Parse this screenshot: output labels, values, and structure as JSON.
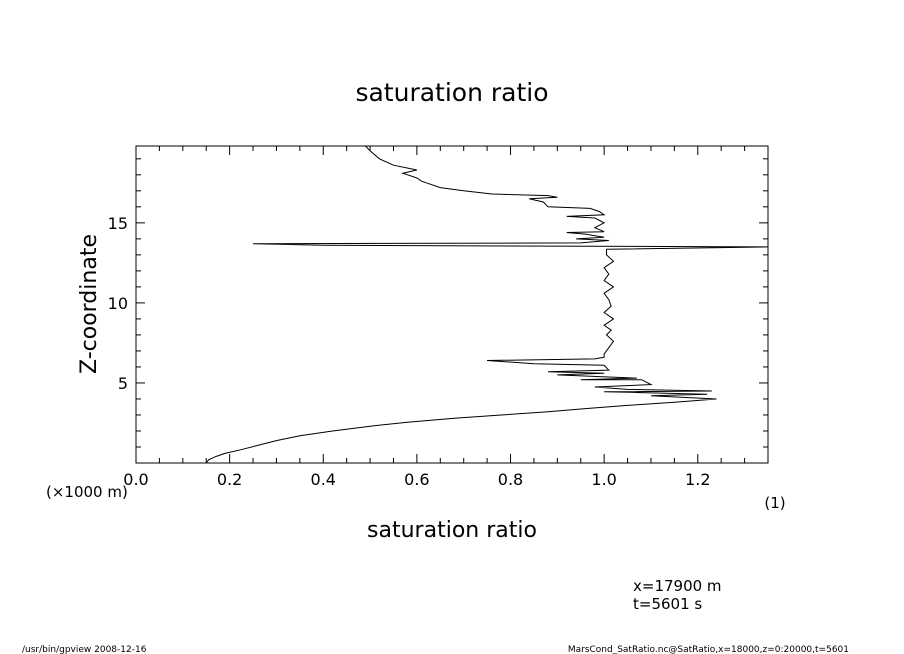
{
  "chart_data": {
    "type": "line",
    "title": "saturation ratio",
    "xlabel": "saturation ratio",
    "xunit": "(1)",
    "ylabel": "Z-coordinate",
    "yunit": "(×1000 m)",
    "xlim": [
      0.0,
      1.35
    ],
    "ylim": [
      0,
      19.8
    ],
    "xticks": [
      0.0,
      0.2,
      0.4,
      0.6,
      0.8,
      1.0,
      1.2
    ],
    "xtick_labels": [
      "0.0",
      "0.2",
      "0.4",
      "0.6",
      "0.8",
      "1.0",
      "1.2"
    ],
    "yticks": [
      5,
      10,
      15
    ],
    "ytick_labels": [
      "5",
      "10",
      "15"
    ],
    "grid": false,
    "series": [
      {
        "name": "",
        "points": [
          [
            0.15,
            0.0
          ],
          [
            0.155,
            0.2
          ],
          [
            0.17,
            0.4
          ],
          [
            0.19,
            0.6
          ],
          [
            0.22,
            0.8
          ],
          [
            0.26,
            1.1
          ],
          [
            0.3,
            1.4
          ],
          [
            0.35,
            1.7
          ],
          [
            0.42,
            2.0
          ],
          [
            0.5,
            2.3
          ],
          [
            0.58,
            2.55
          ],
          [
            0.68,
            2.8
          ],
          [
            0.78,
            3.0
          ],
          [
            0.88,
            3.2
          ],
          [
            0.96,
            3.4
          ],
          [
            1.05,
            3.6
          ],
          [
            1.15,
            3.8
          ],
          [
            1.24,
            4.0
          ],
          [
            1.1,
            4.2
          ],
          [
            1.22,
            4.3
          ],
          [
            1.0,
            4.45
          ],
          [
            1.23,
            4.5
          ],
          [
            1.05,
            4.6
          ],
          [
            0.98,
            4.75
          ],
          [
            1.1,
            4.9
          ],
          [
            1.08,
            5.2
          ],
          [
            0.95,
            5.2
          ],
          [
            1.07,
            5.3
          ],
          [
            0.9,
            5.5
          ],
          [
            1.0,
            5.6
          ],
          [
            0.88,
            5.7
          ],
          [
            1.01,
            5.8
          ],
          [
            1.0,
            6.1
          ],
          [
            0.85,
            6.2
          ],
          [
            0.75,
            6.4
          ],
          [
            0.98,
            6.5
          ],
          [
            1.0,
            6.6
          ],
          [
            1.0,
            6.8
          ],
          [
            1.01,
            7.2
          ],
          [
            1.02,
            7.6
          ],
          [
            1.005,
            8.0
          ],
          [
            1.015,
            8.3
          ],
          [
            1.0,
            8.6
          ],
          [
            1.02,
            9.0
          ],
          [
            1.0,
            9.4
          ],
          [
            1.015,
            9.8
          ],
          [
            1.01,
            10.2
          ],
          [
            1.0,
            10.6
          ],
          [
            1.02,
            11.0
          ],
          [
            1.0,
            11.4
          ],
          [
            1.01,
            11.8
          ],
          [
            1.0,
            12.2
          ],
          [
            1.02,
            12.6
          ],
          [
            1.005,
            13.0
          ],
          [
            1.005,
            13.35
          ],
          [
            1.36,
            13.5
          ],
          [
            0.4,
            13.6
          ],
          [
            0.25,
            13.7
          ],
          [
            0.95,
            13.75
          ],
          [
            1.01,
            13.9
          ],
          [
            0.94,
            14.0
          ],
          [
            1.0,
            14.1
          ],
          [
            0.96,
            14.3
          ],
          [
            0.92,
            14.4
          ],
          [
            1.0,
            14.45
          ],
          [
            0.98,
            14.7
          ],
          [
            1.0,
            15.0
          ],
          [
            0.98,
            15.3
          ],
          [
            0.92,
            15.4
          ],
          [
            1.0,
            15.5
          ],
          [
            0.99,
            15.7
          ],
          [
            0.97,
            15.9
          ],
          [
            0.88,
            16.0
          ],
          [
            0.87,
            16.3
          ],
          [
            0.84,
            16.5
          ],
          [
            0.9,
            16.6
          ],
          [
            0.88,
            16.7
          ],
          [
            0.76,
            16.8
          ],
          [
            0.7,
            17.0
          ],
          [
            0.65,
            17.2
          ],
          [
            0.62,
            17.5
          ],
          [
            0.61,
            17.6
          ],
          [
            0.6,
            17.8
          ],
          [
            0.58,
            18.0
          ],
          [
            0.57,
            18.1
          ],
          [
            0.6,
            18.3
          ],
          [
            0.55,
            18.6
          ],
          [
            0.52,
            19.0
          ],
          [
            0.5,
            19.5
          ],
          [
            0.49,
            19.8
          ]
        ]
      }
    ]
  },
  "annotations": {
    "x_info": "x=17900 m",
    "t_info": "t=5601 s",
    "footer_left": "/usr/bin/gpview   2008-12-16",
    "footer_right": "MarsCond_SatRatio.nc@SatRatio,x=18000,z=0:20000,t=5601"
  }
}
